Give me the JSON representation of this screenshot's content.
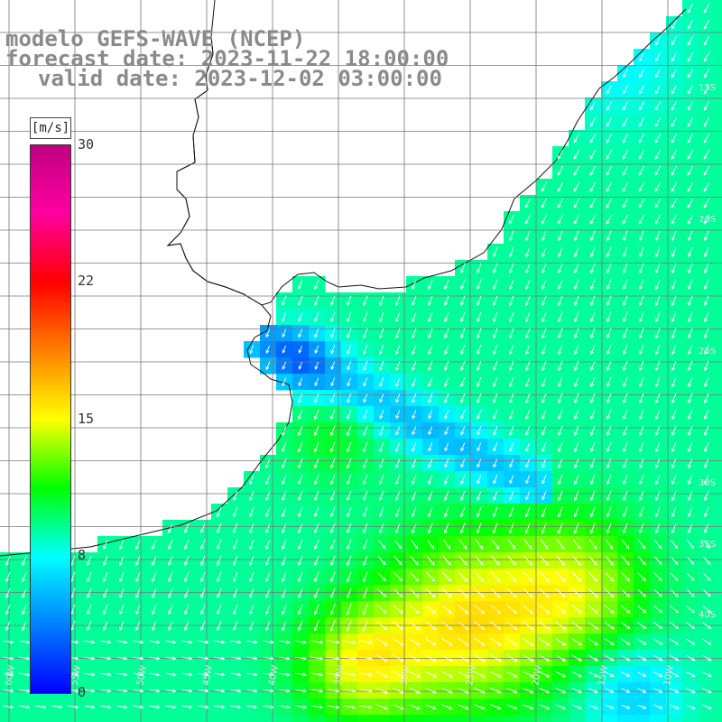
{
  "title": {
    "line1": "modelo GEFS-WAVE (NCEP)",
    "line2": "forecast date: 2023-11-22 18:00:00",
    "line3": "valid date: 2023-12-02 03:00:00"
  },
  "colorbar": {
    "unit": "[m/s]",
    "ticks": [
      "30",
      "22",
      "15",
      "8",
      "0"
    ],
    "min": 0,
    "max": 30,
    "colors": [
      "#0000ff",
      "#0080ff",
      "#00ffff",
      "#00ff00",
      "#ffff00",
      "#ff8000",
      "#ff0000",
      "#ff00a0",
      "#c00080"
    ]
  },
  "map": {
    "lon_labels": [
      "60W",
      "55W",
      "50W",
      "45W",
      "40W",
      "35W",
      "30W",
      "25W",
      "20W",
      "15W",
      "10W"
    ],
    "lat_labels": [
      "15S",
      "20S",
      "25S",
      "30S",
      "35S",
      "40S"
    ],
    "land_color": "#ffffff",
    "grid_color": "#777777",
    "arrow_color": "#ffffff"
  }
}
